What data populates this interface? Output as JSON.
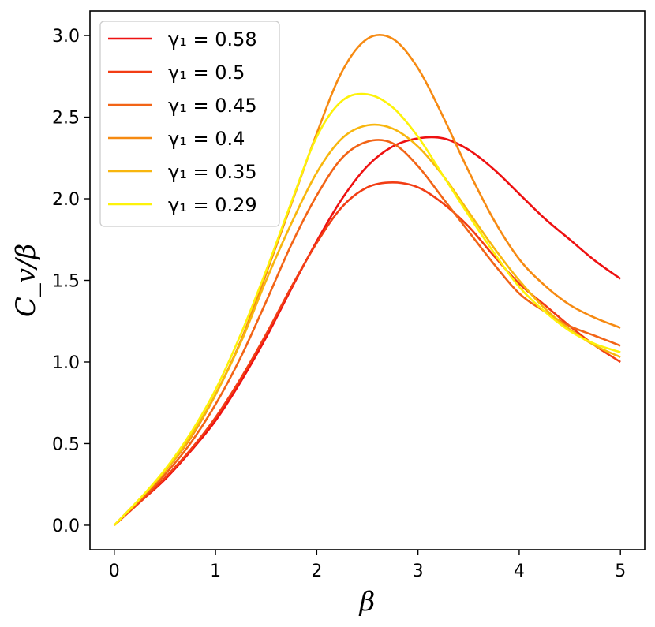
{
  "chart_data": {
    "type": "line",
    "xlabel": "β",
    "ylabel": "C_v/β",
    "xlim": [
      -0.24,
      5.24
    ],
    "ylim": [
      -0.15,
      3.15
    ],
    "xticks": [
      0,
      1,
      2,
      3,
      4,
      5
    ],
    "xtick_labels": [
      "0",
      "1",
      "2",
      "3",
      "4",
      "5"
    ],
    "yticks": [
      0.0,
      0.5,
      1.0,
      1.5,
      2.0,
      2.5,
      3.0
    ],
    "ytick_labels": [
      "0.0",
      "0.5",
      "1.0",
      "1.5",
      "2.0",
      "2.5",
      "3.0"
    ],
    "grid": false,
    "legend_position": "top-left",
    "x": [
      0,
      0.25,
      0.5,
      0.75,
      1.0,
      1.25,
      1.5,
      1.75,
      2.0,
      2.25,
      2.5,
      2.75,
      3.0,
      3.25,
      3.5,
      3.75,
      4.0,
      4.25,
      4.5,
      4.75,
      5.0
    ],
    "series": [
      {
        "name": "γ₁ = 0.58",
        "color": "#ee1111",
        "values": [
          0,
          0.14,
          0.28,
          0.45,
          0.64,
          0.88,
          1.15,
          1.45,
          1.74,
          2.0,
          2.2,
          2.32,
          2.37,
          2.37,
          2.3,
          2.18,
          2.03,
          1.88,
          1.75,
          1.62,
          1.51
        ]
      },
      {
        "name": "γ₁ = 0.5",
        "color": "#f23d14",
        "values": [
          0,
          0.14,
          0.29,
          0.46,
          0.66,
          0.9,
          1.17,
          1.46,
          1.73,
          1.95,
          2.07,
          2.1,
          2.07,
          1.97,
          1.83,
          1.65,
          1.48,
          1.35,
          1.22,
          1.1,
          1.0
        ]
      },
      {
        "name": "γ₁ = 0.45",
        "color": "#f26416",
        "values": [
          0,
          0.15,
          0.31,
          0.5,
          0.74,
          1.03,
          1.37,
          1.72,
          2.02,
          2.25,
          2.35,
          2.34,
          2.2,
          2.0,
          1.8,
          1.6,
          1.42,
          1.31,
          1.22,
          1.16,
          1.1
        ]
      },
      {
        "name": "γ₁ = 0.4",
        "color": "#f68a12",
        "values": [
          0,
          0.16,
          0.33,
          0.53,
          0.8,
          1.13,
          1.54,
          1.97,
          2.4,
          2.78,
          2.98,
          2.98,
          2.8,
          2.5,
          2.17,
          1.87,
          1.63,
          1.47,
          1.35,
          1.27,
          1.21
        ]
      },
      {
        "name": "γ₁ = 0.35",
        "color": "#f8b60e",
        "values": [
          0,
          0.16,
          0.33,
          0.54,
          0.8,
          1.12,
          1.5,
          1.85,
          2.16,
          2.37,
          2.45,
          2.43,
          2.32,
          2.14,
          1.92,
          1.7,
          1.5,
          1.33,
          1.2,
          1.1,
          1.03
        ]
      },
      {
        "name": "γ₁ = 0.29",
        "color": "#fdf20a",
        "values": [
          0,
          0.16,
          0.34,
          0.56,
          0.83,
          1.17,
          1.56,
          1.98,
          2.38,
          2.6,
          2.64,
          2.56,
          2.38,
          2.14,
          1.9,
          1.67,
          1.46,
          1.31,
          1.19,
          1.11,
          1.06
        ]
      }
    ]
  }
}
